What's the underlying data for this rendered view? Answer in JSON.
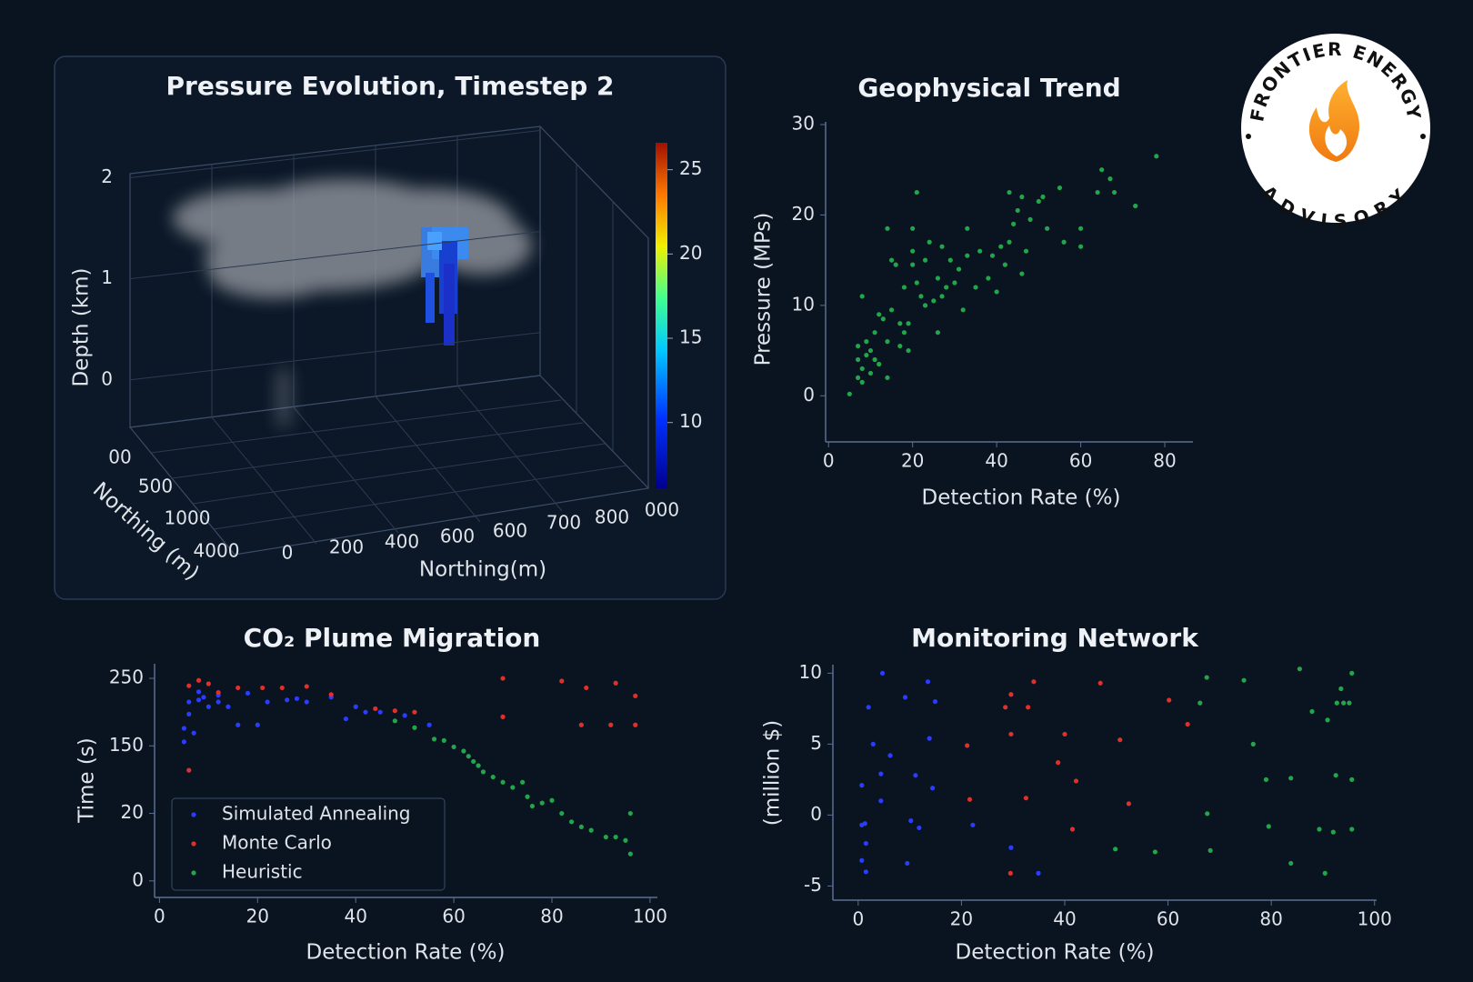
{
  "logo": {
    "top": "FRONTIER ENERGY",
    "bottom": "ADVISORY"
  },
  "chart_data": [
    {
      "type": "volume",
      "title": "Pressure Evolution, Timestep 2",
      "zlabel": "Depth (km)",
      "xlabel": "Northing(m)",
      "ylabel": "Northing (m)",
      "zlim": [
        -0.47,
        2.04
      ],
      "zticks": [
        0,
        1,
        2
      ],
      "xtick_labels": [
        "0",
        "200",
        "400",
        "600",
        "600",
        "700",
        "800",
        "000"
      ],
      "ytick_labels": [
        "00",
        "500",
        "1000",
        "4000"
      ],
      "colorbar": {
        "lim": [
          6.1,
          26.6
        ],
        "ticks": [
          10,
          15,
          20,
          25
        ],
        "colormap": "jet"
      }
    },
    {
      "type": "scatter",
      "title": "Geophysical Trend",
      "xlabel": "Detection Rate (%)",
      "ylabel": "Pressure (MPs)",
      "xlim": [
        -0.7,
        86.7
      ],
      "ylim": [
        -5.1,
        30.3
      ],
      "xticks": [
        0,
        20,
        40,
        60,
        80
      ],
      "yticks": [
        0,
        10,
        20,
        30
      ],
      "series": [
        {
          "color": "#22a64a",
          "x": [
            5,
            7,
            7,
            7,
            8,
            8,
            8,
            9,
            9,
            10,
            10,
            11,
            11,
            12,
            12,
            13,
            14,
            14,
            14,
            15,
            15,
            16,
            17,
            17,
            18,
            18,
            19,
            19,
            20,
            20,
            20,
            21,
            21,
            22,
            23,
            23,
            24,
            25,
            26,
            26,
            27,
            27,
            28,
            29,
            30,
            31,
            32,
            33,
            33,
            35,
            36,
            38,
            39,
            40,
            41,
            42,
            43,
            43,
            44,
            45,
            46,
            46,
            47,
            48,
            50,
            51,
            52,
            55,
            56,
            60,
            60,
            64,
            65,
            67,
            68,
            73,
            78
          ],
          "values": [
            0.2,
            2,
            4,
            5.5,
            3,
            1.5,
            11,
            6,
            4.5,
            5,
            2.5,
            7,
            4,
            3.5,
            9,
            8.5,
            6,
            2,
            18.5,
            9.5,
            15,
            14.5,
            8,
            5.5,
            7,
            12,
            5,
            8,
            18.5,
            14.5,
            16,
            22.5,
            12.5,
            11,
            10,
            15,
            17,
            10.5,
            13,
            7,
            11,
            16.5,
            12,
            15,
            12.5,
            14,
            9.5,
            15.5,
            18.5,
            12,
            16,
            13,
            15.5,
            11.5,
            16.5,
            14.5,
            22.5,
            17,
            19,
            20.5,
            13.5,
            22,
            16,
            19.5,
            21.5,
            22,
            18.5,
            23,
            17,
            18.5,
            16.5,
            22.5,
            25,
            24,
            22.5,
            21,
            26.5
          ]
        }
      ]
    },
    {
      "type": "scatter",
      "title": "CO₂ Plume Migration",
      "xlabel": "Detection Rate (%)",
      "ylabel": "Time (s)",
      "xlim": [
        -1,
        101.5
      ],
      "ylim": [
        -4.9,
        271.6
      ],
      "yscale": "piecewise",
      "xticks": [
        0,
        20,
        40,
        60,
        80,
        100
      ],
      "yticks": [
        0,
        20,
        150,
        250
      ],
      "legend": "lower left",
      "series": [
        {
          "name": "Simulated Annealing",
          "color": "#2a3cff",
          "x": [
            5,
            5,
            6,
            6,
            7,
            8,
            9,
            10,
            12,
            14,
            16,
            20,
            22,
            26,
            30,
            35,
            38,
            40,
            45,
            50,
            55,
            8,
            12,
            18,
            28,
            42
          ],
          "values": [
            156,
            176,
            215,
            197,
            169,
            218,
            222,
            208,
            215,
            208,
            181,
            181,
            215,
            218,
            215,
            222,
            190,
            208,
            200,
            195,
            181,
            230,
            225,
            228,
            220,
            200
          ]
        },
        {
          "name": "Monte Carlo",
          "color": "#e0302a",
          "x": [
            6,
            8,
            10,
            12,
            16,
            21,
            25,
            30,
            6,
            35,
            44,
            48,
            70,
            70,
            82,
            86,
            87,
            93,
            97,
            92,
            97,
            52
          ],
          "values": [
            239,
            247,
            242,
            229,
            236,
            236,
            236,
            238,
            103,
            226,
            205,
            202,
            250,
            193,
            246,
            181,
            236,
            243,
            224,
            181,
            181,
            200
          ]
        },
        {
          "name": "Heuristic",
          "color": "#22a64a",
          "x": [
            48,
            52,
            58,
            60,
            62,
            63,
            65,
            66,
            68,
            72,
            75,
            76,
            74,
            80,
            82,
            84,
            86,
            88,
            91,
            93,
            95,
            96,
            96,
            56,
            64,
            70,
            78
          ],
          "values": [
            187,
            177,
            158,
            148,
            140,
            130,
            112,
            100,
            90,
            70,
            52,
            34,
            80,
            45,
            20,
            17.5,
            16,
            15,
            13,
            13,
            12,
            20,
            8,
            160,
            120,
            80,
            40
          ]
        }
      ]
    },
    {
      "type": "scatter",
      "title": "Monitoring Network",
      "xlabel": "Detection Rate (%)",
      "ylabel": "(million $)",
      "xlim": [
        -4.9,
        100.4
      ],
      "ylim": [
        -6,
        10.6
      ],
      "xticks": [
        0,
        20,
        40,
        60,
        80,
        100
      ],
      "yticks": [
        -5,
        0,
        5,
        10
      ],
      "series": [
        {
          "color": "#2a3cff",
          "x": [
            2,
            4.7,
            2.9,
            6.2,
            4.4,
            0.7,
            4.4,
            9.1,
            13.5,
            14.9,
            13.8,
            11.1,
            14.4,
            0.7,
            1.3,
            1.5,
            0.7,
            1.5,
            10.2,
            11.8,
            22.2,
            29.6,
            9.5,
            34.9
          ],
          "values": [
            7.6,
            10,
            5,
            4.2,
            2.9,
            2.1,
            1,
            8.3,
            9.4,
            8,
            5.4,
            2.8,
            1.9,
            -0.7,
            -0.6,
            -2,
            -3.2,
            -4,
            -0.4,
            -0.9,
            -0.7,
            -2.3,
            -3.4,
            -4.1
          ]
        },
        {
          "color": "#e0302a",
          "x": [
            29.6,
            28.5,
            29.6,
            21.1,
            21.6,
            29.5,
            34,
            32.9,
            32.5,
            38.7,
            40,
            41.5,
            42.2,
            46.9,
            50.7,
            52.4,
            60.2,
            63.8
          ],
          "values": [
            8.5,
            7.6,
            5.7,
            4.9,
            1.1,
            -4.1,
            9.4,
            7.6,
            1.2,
            3.7,
            5.7,
            -1,
            2.4,
            9.3,
            5.3,
            0.8,
            8.1,
            6.4
          ]
        },
        {
          "color": "#22a64a",
          "x": [
            49.8,
            57.5,
            66.2,
            67.5,
            67.6,
            68.2,
            74.7,
            76.5,
            79,
            79.5,
            83.8,
            85.5,
            83.8,
            87.9,
            90.9,
            89.3,
            92,
            93.5,
            92.5,
            95.1,
            95.6,
            95.6,
            95.6,
            92.7,
            94,
            90.4
          ],
          "values": [
            -2.4,
            -2.6,
            7.9,
            9.7,
            0.1,
            -2.5,
            9.5,
            5,
            2.5,
            -0.8,
            -3.4,
            10.3,
            2.6,
            7.3,
            6.7,
            -1,
            -1.2,
            8.9,
            2.8,
            7.9,
            10,
            2.5,
            -1,
            7.9,
            7.9,
            -4.1
          ]
        }
      ]
    }
  ]
}
